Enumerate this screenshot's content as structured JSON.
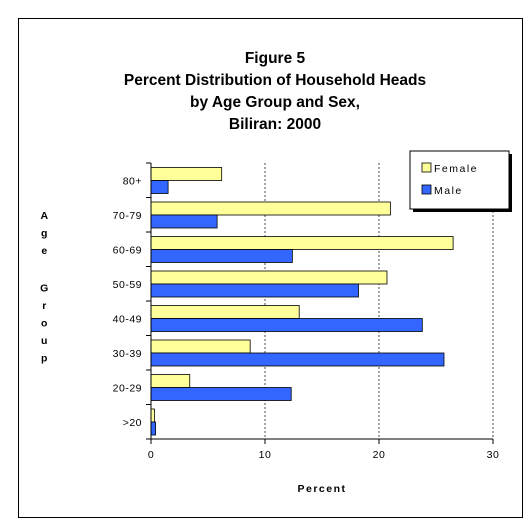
{
  "chart_data": {
    "type": "bar",
    "orientation": "horizontal",
    "title_lines": [
      "Figure 5",
      "Percent Distribution of Household Heads",
      "by Age Group and Sex,",
      "Biliran: 2000"
    ],
    "categories": [
      "80+",
      "70-79",
      "60-69",
      "50-59",
      "40-49",
      "30-39",
      "20-29",
      ">20"
    ],
    "series": [
      {
        "name": "Female",
        "color": "#ffff99",
        "values": [
          6.2,
          21.0,
          26.5,
          20.7,
          13.0,
          8.7,
          3.4,
          0.3
        ]
      },
      {
        "name": "Male",
        "color": "#3366ff",
        "values": [
          1.5,
          5.8,
          12.4,
          18.2,
          23.8,
          25.7,
          12.3,
          0.4
        ]
      }
    ],
    "xlabel": "Percent",
    "ylabel": "Age Group",
    "xlim": [
      0,
      30
    ],
    "xticks": [
      0,
      10,
      20,
      30
    ],
    "gridlines": "vertical-dashed",
    "legend_position": "top-right"
  }
}
